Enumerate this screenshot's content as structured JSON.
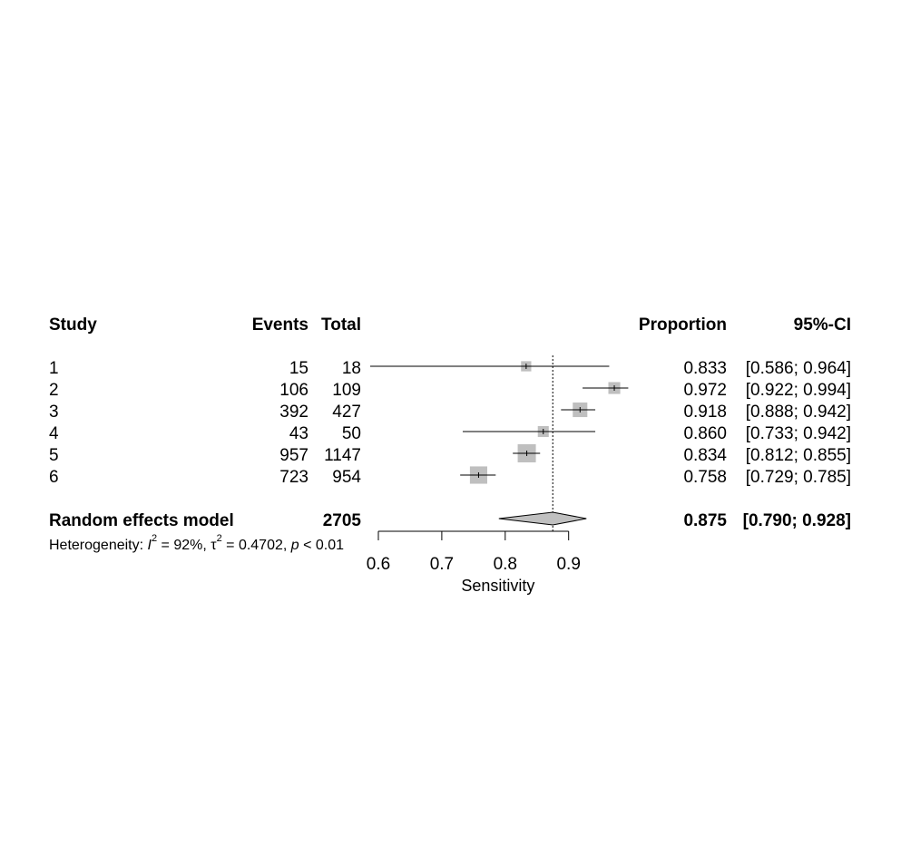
{
  "headers": {
    "study": "Study",
    "events": "Events",
    "total": "Total",
    "proportion": "Proportion",
    "ci": "95%-CI"
  },
  "studies": [
    {
      "label": "1",
      "events": "15",
      "total": "18",
      "proportion": "0.833",
      "ci": "[0.586; 0.964]"
    },
    {
      "label": "2",
      "events": "106",
      "total": "109",
      "proportion": "0.972",
      "ci": "[0.922; 0.994]"
    },
    {
      "label": "3",
      "events": "392",
      "total": "427",
      "proportion": "0.918",
      "ci": "[0.888; 0.942]"
    },
    {
      "label": "4",
      "events": "43",
      "total": "50",
      "proportion": "0.860",
      "ci": "[0.733; 0.942]"
    },
    {
      "label": "5",
      "events": "957",
      "total": "1147",
      "proportion": "0.834",
      "ci": "[0.812; 0.855]"
    },
    {
      "label": "6",
      "events": "723",
      "total": "954",
      "proportion": "0.758",
      "ci": "[0.729; 0.785]"
    }
  ],
  "summary": {
    "label": "Random effects model",
    "total": "2705",
    "proportion": "0.875",
    "ci": "[0.790; 0.928]"
  },
  "heterogeneity": {
    "prefix": "Heterogeneity: ",
    "i2_symbol": "I",
    "i2_rest": " = 92%, ",
    "tau_symbol": "τ",
    "tau_rest": " = 0.4702, ",
    "p_symbol": "p",
    "p_rest": " < 0.01",
    "squared": "2"
  },
  "chart_data": {
    "type": "forest",
    "xlabel": "Sensitivity",
    "xticks": [
      0.6,
      0.7,
      0.8,
      0.9
    ],
    "tick_labels": [
      "0.6",
      "0.7",
      "0.8",
      "0.9"
    ],
    "reference_line": 0.875,
    "studies": [
      {
        "name": "1",
        "estimate": 0.833,
        "lower": 0.586,
        "upper": 0.964,
        "weight_total": 18
      },
      {
        "name": "2",
        "estimate": 0.972,
        "lower": 0.922,
        "upper": 0.994,
        "weight_total": 109
      },
      {
        "name": "3",
        "estimate": 0.918,
        "lower": 0.888,
        "upper": 0.942,
        "weight_total": 427
      },
      {
        "name": "4",
        "estimate": 0.86,
        "lower": 0.733,
        "upper": 0.942,
        "weight_total": 50
      },
      {
        "name": "5",
        "estimate": 0.834,
        "lower": 0.812,
        "upper": 0.855,
        "weight_total": 1147
      },
      {
        "name": "6",
        "estimate": 0.758,
        "lower": 0.729,
        "upper": 0.785,
        "weight_total": 954
      }
    ],
    "pooled": {
      "estimate": 0.875,
      "lower": 0.79,
      "upper": 0.928
    },
    "colors": {
      "box": "#bfbfbf",
      "diamond": "#c0c0c0",
      "line": "#000000"
    }
  }
}
